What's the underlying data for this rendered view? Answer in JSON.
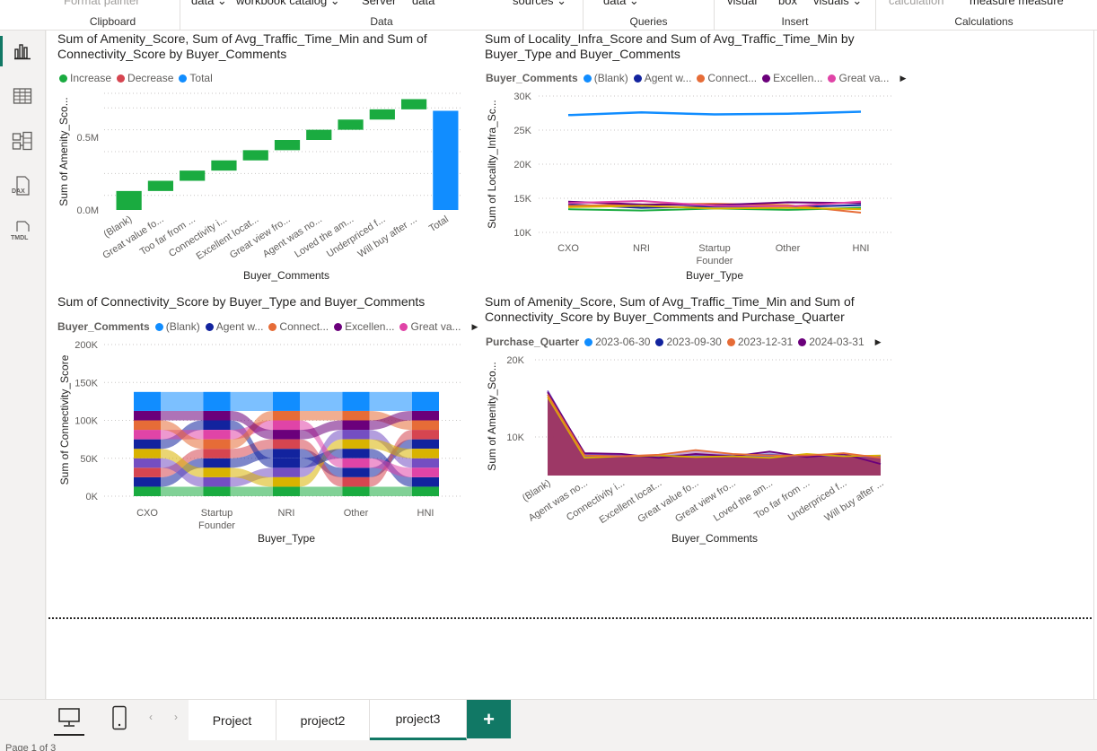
{
  "ribbon": {
    "groups": [
      {
        "caption": "Clipboard",
        "items": [
          "Format painter"
        ]
      },
      {
        "caption": "Data",
        "items": [
          "data ⌄",
          "workbook catalog ⌄",
          "Server",
          "data",
          "sources ⌄"
        ]
      },
      {
        "caption": "Queries",
        "items": [
          "data ⌄"
        ]
      },
      {
        "caption": "Insert",
        "items": [
          "visual",
          "box",
          "visuals ⌄"
        ]
      },
      {
        "caption": "Calculations",
        "items": [
          "calculation",
          "measure measure"
        ]
      }
    ]
  },
  "nav": {
    "icons": [
      "report-view-icon",
      "table-view-icon",
      "model-view-icon",
      "dax-query-icon",
      "tmdl-view-icon"
    ],
    "dax_label": "DAX",
    "tmdl_label": "TMDL"
  },
  "visual1": {
    "title": "Sum of Amenity_Score, Sum of Avg_Traffic_Time_Min and Sum of Connectivity_Score by Buyer_Comments",
    "legend": [
      {
        "label": "Increase",
        "color": "#1aab40"
      },
      {
        "label": "Decrease",
        "color": "#d64550"
      },
      {
        "label": "Total",
        "color": "#118dff"
      }
    ],
    "ylabel": "Sum of Amenity_Sco...",
    "xlabel": "Buyer_Comments",
    "ytick_labels": [
      "0.0M",
      "0.5M"
    ]
  },
  "visual2": {
    "title": "Sum of Locality_Infra_Score and Sum of Avg_Traffic_Time_Min by Buyer_Type and Buyer_Comments",
    "legend_title": "Buyer_Comments",
    "legend": [
      {
        "label": "(Blank)",
        "color": "#118dff"
      },
      {
        "label": "Agent w...",
        "color": "#12239e"
      },
      {
        "label": "Connect...",
        "color": "#e66c37"
      },
      {
        "label": "Excellen...",
        "color": "#6b007b"
      },
      {
        "label": "Great va...",
        "color": "#e044a7"
      }
    ],
    "ylabel": "Sum of Locality_Infra_Sc...",
    "xlabel": "Buyer_Type",
    "ytick_labels": [
      "10K",
      "15K",
      "20K",
      "25K",
      "30K"
    ]
  },
  "visual3": {
    "title": "Sum of Connectivity_Score by Buyer_Type and Buyer_Comments",
    "legend_title": "Buyer_Comments",
    "legend": [
      {
        "label": "(Blank)",
        "color": "#118dff"
      },
      {
        "label": "Agent w...",
        "color": "#12239e"
      },
      {
        "label": "Connect...",
        "color": "#e66c37"
      },
      {
        "label": "Excellen...",
        "color": "#6b007b"
      },
      {
        "label": "Great va...",
        "color": "#e044a7"
      }
    ],
    "ylabel": "Sum of Connectivity_Score",
    "xlabel": "Buyer_Type",
    "ytick_labels": [
      "0K",
      "50K",
      "100K",
      "150K",
      "200K"
    ]
  },
  "visual4": {
    "title": "Sum of Amenity_Score, Sum of Avg_Traffic_Time_Min and Sum of Connectivity_Score by Buyer_Comments and Purchase_Quarter",
    "legend_title": "Purchase_Quarter",
    "legend": [
      {
        "label": "2023-06-30",
        "color": "#118dff"
      },
      {
        "label": "2023-09-30",
        "color": "#12239e"
      },
      {
        "label": "2023-12-31",
        "color": "#e66c37"
      },
      {
        "label": "2024-03-31",
        "color": "#6b007b"
      }
    ],
    "ylabel": "Sum of Amenity_Sco...",
    "xlabel": "Buyer_Comments",
    "ytick_labels": [
      "10K",
      "20K"
    ]
  },
  "chart_data": [
    {
      "type": "waterfall",
      "title": "Sum of Amenity_Score, Sum of Avg_Traffic_Time_Min and Sum of Connectivity_Score by Buyer_Comments",
      "xlabel": "Buyer_Comments",
      "ylabel": "Sum of Amenity_Sco...",
      "categories": [
        "(Blank)",
        "Great value fo...",
        "Too far from ...",
        "Connectivity i...",
        "Excellent locat...",
        "Great view fro...",
        "Agent was no...",
        "Loved the am...",
        "Underpriced f...",
        "Will buy after ...",
        "Total"
      ],
      "values": [
        0.13,
        0.07,
        0.07,
        0.07,
        0.07,
        0.07,
        0.07,
        0.07,
        0.07,
        0.07,
        0.68
      ],
      "ylim": [
        0,
        0.8
      ],
      "unit": "M",
      "legend": "top-left",
      "grid": true
    },
    {
      "type": "line",
      "title": "Sum of Locality_Infra_Score and Sum of Avg_Traffic_Time_Min by Buyer_Type and Buyer_Comments",
      "xlabel": "Buyer_Type",
      "ylabel": "Sum of Locality_Infra_Sc...",
      "categories": [
        "CXO",
        "NRI",
        "Startup Founder",
        "Other",
        "HNI"
      ],
      "ylim": [
        10000,
        30000
      ],
      "series": [
        {
          "name": "(Blank)",
          "values": [
            27200,
            27600,
            27300,
            27400,
            27700
          ]
        },
        {
          "name": "Agent w...",
          "values": [
            14100,
            13600,
            13800,
            13700,
            14000
          ]
        },
        {
          "name": "Connect...",
          "values": [
            13900,
            14100,
            14200,
            14000,
            12900
          ]
        },
        {
          "name": "Excellen...",
          "values": [
            14500,
            14100,
            14000,
            14400,
            14300
          ]
        },
        {
          "name": "Great va...",
          "values": [
            14300,
            14600,
            13900,
            13800,
            14500
          ]
        },
        {
          "name": "",
          "values": [
            13400,
            13200,
            13500,
            13300,
            13600
          ]
        },
        {
          "name": "",
          "values": [
            13700,
            13900,
            13500,
            13600,
            13400
          ]
        }
      ],
      "legend": "top-left",
      "grid": true
    },
    {
      "type": "ribbon",
      "title": "Sum of Connectivity_Score by Buyer_Type and Buyer_Comments",
      "xlabel": "Buyer_Type",
      "ylabel": "Sum of Connectivity_Score",
      "categories": [
        "CXO",
        "Startup Founder",
        "NRI",
        "Other",
        "HNI"
      ],
      "ylim": [
        0,
        200000
      ],
      "series": [
        {
          "name": "",
          "values": [
            12500,
            12500,
            12500,
            12500,
            12500
          ]
        },
        {
          "name": "",
          "values": [
            12500,
            12500,
            12500,
            12500,
            12500
          ]
        },
        {
          "name": "",
          "values": [
            12500,
            12500,
            12500,
            12500,
            12500
          ]
        },
        {
          "name": "",
          "values": [
            12500,
            12500,
            12500,
            12500,
            12500
          ]
        },
        {
          "name": "",
          "values": [
            12500,
            12500,
            12500,
            12500,
            12500
          ]
        },
        {
          "name": "",
          "values": [
            12500,
            12500,
            12500,
            12500,
            12500
          ]
        },
        {
          "name": "",
          "values": [
            12500,
            12500,
            12500,
            12500,
            12500
          ]
        },
        {
          "name": "",
          "values": [
            12500,
            12500,
            12500,
            12500,
            12500
          ]
        },
        {
          "name": "",
          "values": [
            12500,
            12500,
            12500,
            12500,
            12500
          ]
        },
        {
          "name": "(Blank)",
          "values": [
            25000,
            25000,
            25000,
            25000,
            25000
          ]
        }
      ],
      "legend": "top-left",
      "grid": true
    },
    {
      "type": "area",
      "title": "Sum of Amenity_Score, Sum of Avg_Traffic_Time_Min and Sum of Connectivity_Score by Buyer_Comments and Purchase_Quarter",
      "xlabel": "Buyer_Comments",
      "ylabel": "Sum of Amenity_Sco...",
      "categories": [
        "(Blank)",
        "Agent was no...",
        "Connectivity i...",
        "Excellent locat...",
        "Great value fo...",
        "Great view fro...",
        "Loved the am...",
        "Too far from ...",
        "Underpriced f...",
        "Will buy after ..."
      ],
      "ylim": [
        5000,
        20000
      ],
      "series": [
        {
          "name": "2023-06-30",
          "values": [
            16000,
            7700,
            7600,
            7500,
            7700,
            7600,
            7700,
            7500,
            7600,
            7400
          ]
        },
        {
          "name": "2023-09-30",
          "values": [
            15800,
            7900,
            7800,
            7300,
            7800,
            7500,
            8100,
            7400,
            7800,
            6500
          ]
        },
        {
          "name": "2023-12-31",
          "values": [
            15200,
            7300,
            7500,
            7600,
            7400,
            7500,
            7300,
            7800,
            7500,
            7600
          ]
        },
        {
          "name": "2024-03-31",
          "values": [
            15500,
            7600,
            7500,
            7700,
            8300,
            7800,
            7600,
            7600,
            7900,
            7300
          ]
        }
      ],
      "legend": "top-left",
      "grid": true
    }
  ],
  "tabs": {
    "items": [
      "Project",
      "project2",
      "project3"
    ],
    "active": "project3",
    "add_label": "+"
  },
  "status": {
    "text": "Page 1 of 3"
  }
}
